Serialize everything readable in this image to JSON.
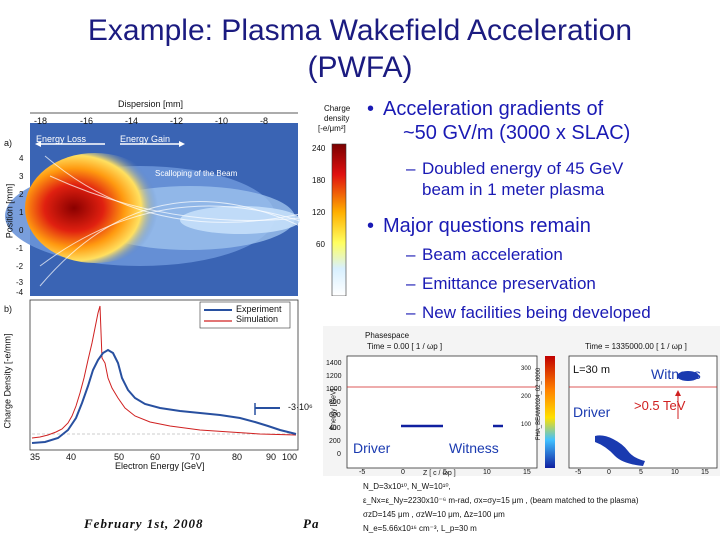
{
  "slide": {
    "title_line1": "Example: Plasma Wakefield Acceleration",
    "title_line2": "(PWFA)",
    "bullets": [
      {
        "text_line1": "Acceleration gradients of",
        "text_line2": "~50 GV/m (3000 x SLAC)"
      },
      {
        "text_line1": "Major questions remain"
      }
    ],
    "sub_bullets_1": [
      {
        "text_line1": "Doubled energy of 45 GeV",
        "text_line2": "beam in 1 meter plasma"
      }
    ],
    "sub_bullets_2": [
      "Beam acceleration",
      "Emittance preservation",
      "New facilities being developed"
    ],
    "footer_date": "February 1st, 2008",
    "footer_page": "Pa"
  },
  "figure_top": {
    "panel_tag": "a)",
    "xaxis_title": "Dispersion [mm]",
    "xticks": [
      "-18",
      "-16",
      "-14",
      "-12",
      "-10",
      "-8"
    ],
    "ylabel": "Position [mm]",
    "yticks": [
      "4",
      "3",
      "2",
      "1",
      "0",
      "-1",
      "-2",
      "-3",
      "-4"
    ],
    "labels": {
      "energy_loss": "Energy Loss",
      "energy_gain": "Energy Gain",
      "scalloping": "Scalloping of the Beam"
    },
    "colorbar_title_1": "Charge",
    "colorbar_title_2": "density",
    "colorbar_unit": "[-e/μm²]",
    "colorbar_ticks": [
      "240",
      "180",
      "120",
      "60"
    ]
  },
  "figure_bottom": {
    "panel_tag": "b)",
    "ylabel": "Charge Density [-e/mm]",
    "xlabel": "Electron Energy [GeV]",
    "xticks": [
      "35",
      "40",
      "50",
      "60",
      "70",
      "80",
      "90",
      "100"
    ],
    "annotation": "-3·10⁶",
    "legend": [
      {
        "name": "Experiment",
        "color": "#2850a0"
      },
      {
        "name": "Simulation",
        "color": "#d02020"
      }
    ]
  },
  "figure_phase": {
    "title": "Phasespace",
    "time_left": "Time =     0.00 [ 1 / ωp ]",
    "time_right": "Time = 1335000.00 [ 1 / ωp ]",
    "ylabel": "Energy [GeV]",
    "yticks": [
      "1400",
      "1200",
      "1000",
      "800",
      "600",
      "400",
      "200",
      "0"
    ],
    "xlabel": "Z [ c / ωp ]",
    "xticks_left": [
      "-5",
      "0",
      "5",
      "10",
      "15"
    ],
    "xticks_right": [
      "-5",
      "0",
      "5",
      "10",
      "15"
    ],
    "colorbar_ticks": [
      "300",
      "200",
      "100"
    ],
    "colorbar_label": "FHA_BEAM0024_02_0000",
    "driver_label": "Driver",
    "witness_label": "Witness",
    "length_label": "L=30 m",
    "energy_label": ">0.5 TeV",
    "params": [
      "N_D=3x10¹⁰, N_W=10¹⁰,",
      "ε_Nx=ε_Ny=2230x10⁻⁶ m-rad, σx=σy=15 μm , (beam matched to the plasma)",
      "σzD=145 μm , σzW=10 μm, Δz=100 μm",
      "N_e=5.66x10¹⁶ cm⁻³, L_p=30 m"
    ]
  }
}
